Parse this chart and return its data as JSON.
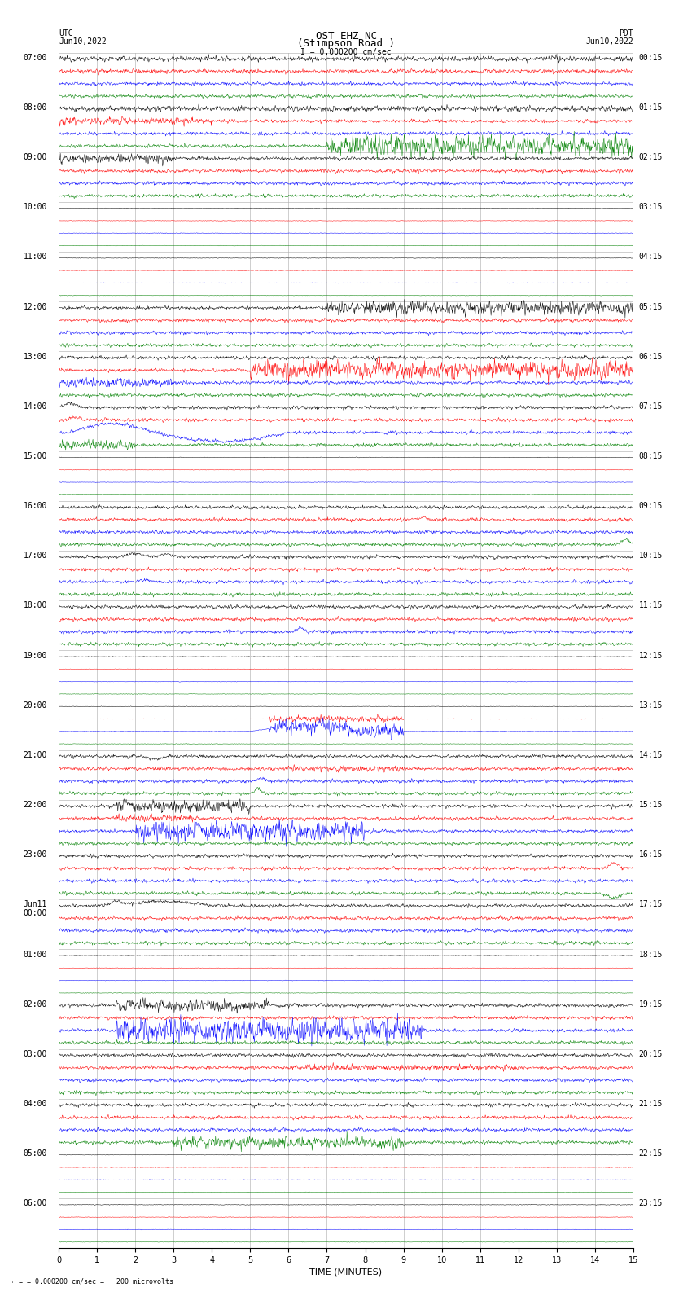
{
  "title_line1": "OST EHZ NC",
  "title_line2": "(Stimpson Road )",
  "scale_text": "I = 0.000200 cm/sec",
  "bottom_text": "= 0.000200 cm/sec =   200 microvolts",
  "utc_label": "UTC",
  "utc_date": "Jun10,2022",
  "pdt_label": "PDT",
  "pdt_date": "Jun10,2022",
  "xlabel": "TIME (MINUTES)",
  "left_times": [
    "07:00",
    "08:00",
    "09:00",
    "10:00",
    "11:00",
    "12:00",
    "13:00",
    "14:00",
    "15:00",
    "16:00",
    "17:00",
    "18:00",
    "19:00",
    "20:00",
    "21:00",
    "22:00",
    "23:00",
    "Jun11\n00:00",
    "01:00",
    "02:00",
    "03:00",
    "04:00",
    "05:00",
    "06:00"
  ],
  "right_times": [
    "00:15",
    "01:15",
    "02:15",
    "03:15",
    "04:15",
    "05:15",
    "06:15",
    "07:15",
    "08:15",
    "09:15",
    "10:15",
    "11:15",
    "12:15",
    "13:15",
    "14:15",
    "15:15",
    "16:15",
    "17:15",
    "18:15",
    "19:15",
    "20:15",
    "21:15",
    "22:15",
    "23:15"
  ],
  "n_rows": 24,
  "n_cols": 4,
  "trace_colors": [
    "black",
    "red",
    "blue",
    "green"
  ],
  "bg_color": "white",
  "grid_color": "#aaaaaa",
  "xmin": 0,
  "xmax": 15,
  "xticks": [
    0,
    1,
    2,
    3,
    4,
    5,
    6,
    7,
    8,
    9,
    10,
    11,
    12,
    13,
    14,
    15
  ],
  "fig_width": 8.5,
  "fig_height": 16.13,
  "dpi": 100,
  "title_fontsize": 8,
  "label_fontsize": 7,
  "tick_fontsize": 7,
  "scale_fontsize": 7
}
